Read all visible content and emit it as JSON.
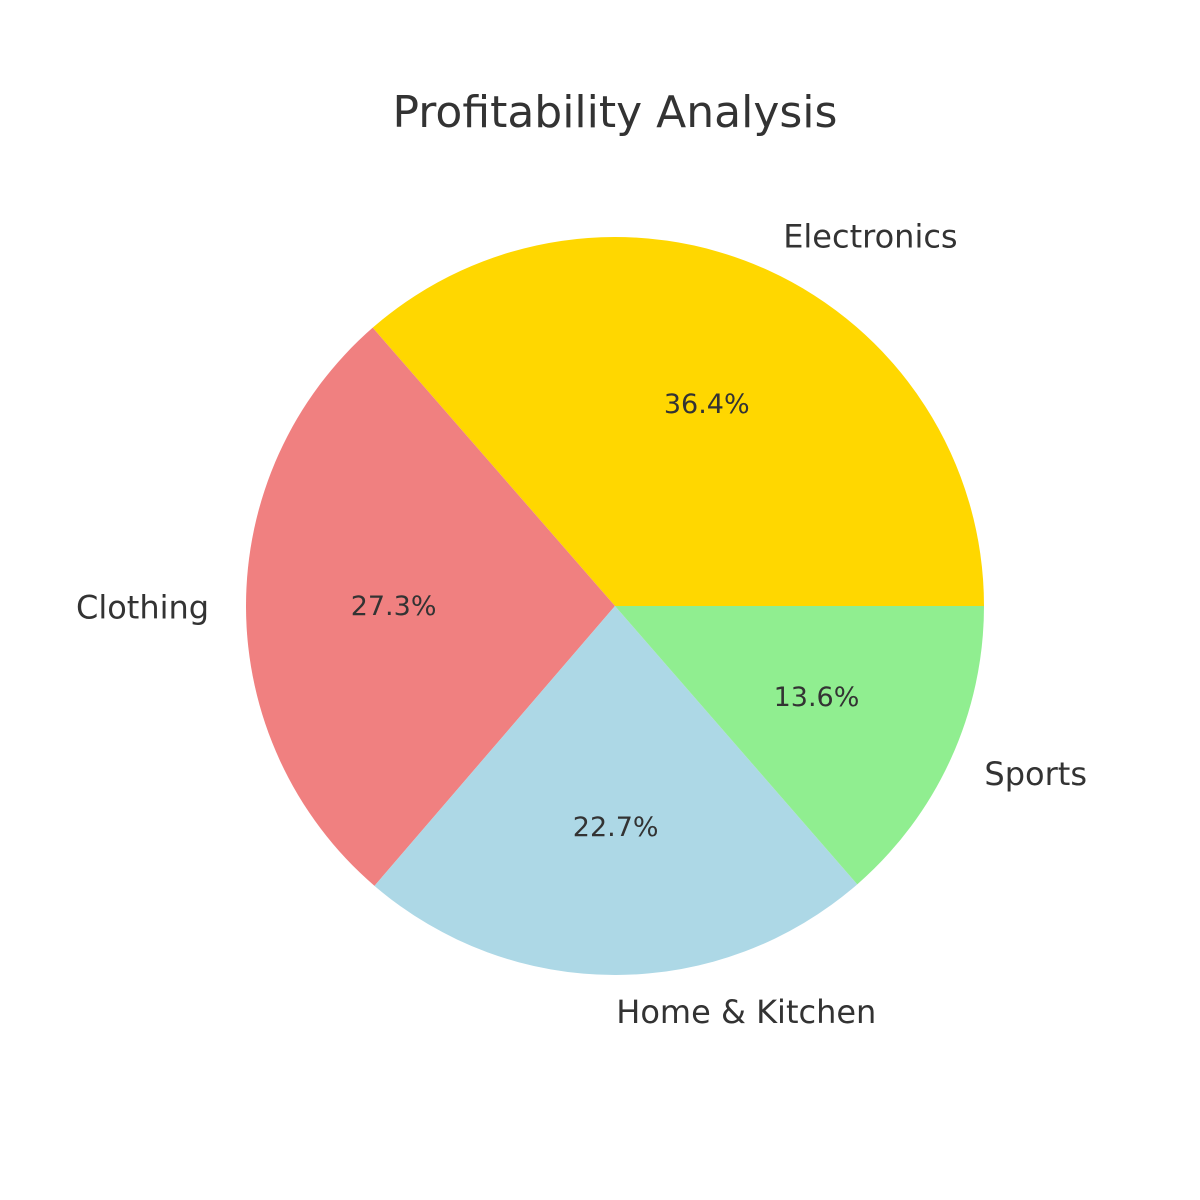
{
  "chart_data": {
    "type": "pie",
    "title": "Profitability Analysis",
    "slices": [
      {
        "label": "Electronics",
        "value": 36.4,
        "pct_label": "36.4%",
        "color": "#FFD700"
      },
      {
        "label": "Clothing",
        "value": 27.3,
        "pct_label": "27.3%",
        "color": "#F08080"
      },
      {
        "label": "Home & Kitchen",
        "value": 22.7,
        "pct_label": "22.7%",
        "color": "#ADD8E6"
      },
      {
        "label": "Sports",
        "value": 13.6,
        "pct_label": "13.6%",
        "color": "#90EE90"
      }
    ],
    "start_angle_deg": 0,
    "direction": "counterclockwise",
    "legend": "none"
  }
}
